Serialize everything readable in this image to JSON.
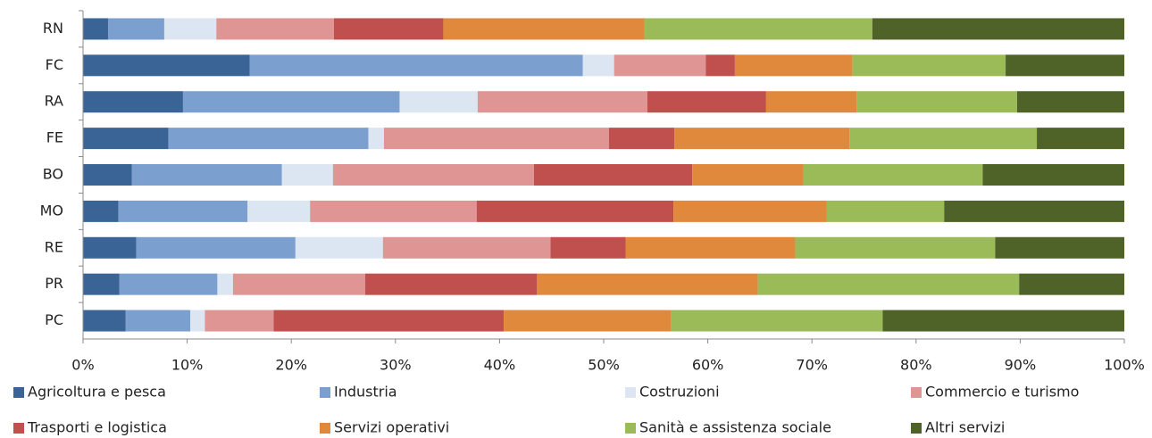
{
  "chart_data": {
    "type": "stacked_barh",
    "categories": [
      "RN",
      "FC",
      "RA",
      "FE",
      "BO",
      "MO",
      "RE",
      "PR",
      "PC"
    ],
    "series": [
      {
        "name": "Agricoltura e pesca",
        "color": "#3a6496",
        "values": [
          2.4,
          16.0,
          9.6,
          8.2,
          4.7,
          3.4,
          5.1,
          3.5,
          4.1
        ]
      },
      {
        "name": "Industria",
        "color": "#7ba0cf",
        "values": [
          5.4,
          32.0,
          20.8,
          19.2,
          14.4,
          12.4,
          15.3,
          9.4,
          6.2
        ]
      },
      {
        "name": "Costruzioni",
        "color": "#dce6f2",
        "values": [
          5.0,
          3.0,
          7.5,
          1.5,
          4.9,
          6.0,
          8.4,
          1.5,
          1.4
        ]
      },
      {
        "name": "Commercio e turismo",
        "color": "#de9594",
        "values": [
          11.3,
          8.8,
          16.3,
          21.6,
          19.3,
          16.0,
          16.1,
          12.7,
          6.6
        ]
      },
      {
        "name": "Trasporti e logistica",
        "color": "#c0504d",
        "values": [
          10.5,
          2.8,
          11.4,
          6.3,
          15.2,
          18.9,
          7.2,
          16.5,
          22.1
        ]
      },
      {
        "name": "Servizi operativi",
        "color": "#e0883c",
        "values": [
          19.3,
          11.3,
          8.7,
          16.8,
          10.7,
          14.7,
          16.3,
          21.2,
          16.1
        ]
      },
      {
        "name": "Sanità e assistenza sociale",
        "color": "#9bbb59",
        "values": [
          21.9,
          14.7,
          15.4,
          18.0,
          17.2,
          11.3,
          19.2,
          25.1,
          20.3
        ]
      },
      {
        "name": "Altri servizi",
        "color": "#4f6228",
        "values": [
          24.2,
          11.4,
          10.3,
          8.4,
          13.6,
          17.3,
          12.4,
          10.1,
          23.2
        ]
      }
    ],
    "xlim": [
      0,
      100
    ],
    "xticks": [
      {
        "value": 0,
        "label": "0%"
      },
      {
        "value": 10,
        "label": "10%"
      },
      {
        "value": 20,
        "label": "20%"
      },
      {
        "value": 30,
        "label": "30%"
      },
      {
        "value": 40,
        "label": "40%"
      },
      {
        "value": 50,
        "label": "50%"
      },
      {
        "value": 60,
        "label": "60%"
      },
      {
        "value": 70,
        "label": "70%"
      },
      {
        "value": 80,
        "label": "80%"
      },
      {
        "value": 90,
        "label": "90%"
      },
      {
        "value": 100,
        "label": "100%"
      }
    ],
    "grid": false
  }
}
